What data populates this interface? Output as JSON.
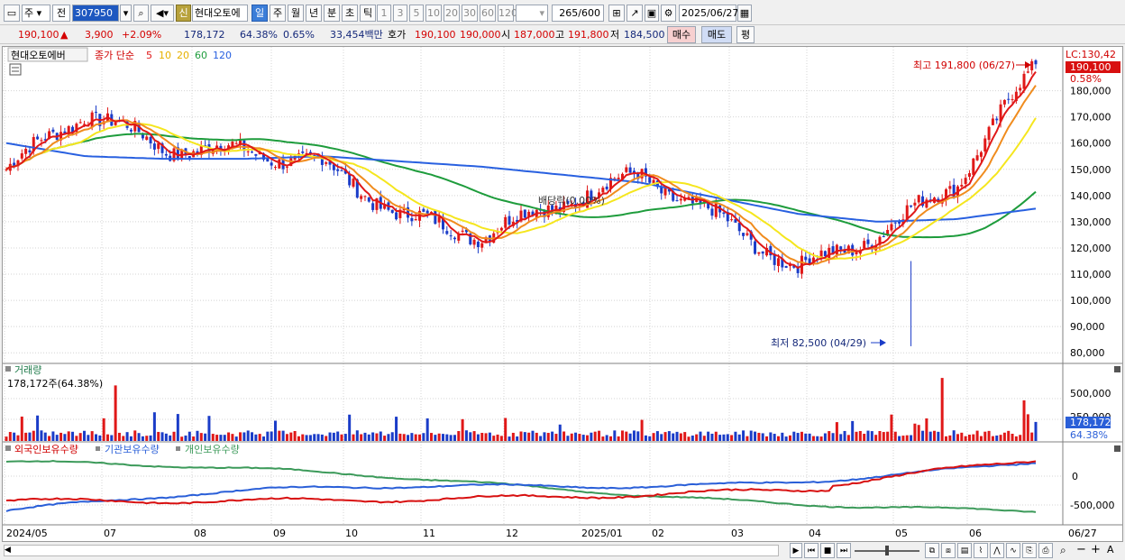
{
  "toolbar": {
    "market": "주",
    "mode": "전",
    "code": "307950",
    "new_badge": "신",
    "name": "현대오토에",
    "periods": [
      "일",
      "주",
      "월",
      "년",
      "분",
      "초",
      "틱"
    ],
    "intervals": [
      "1",
      "3",
      "5",
      "10",
      "20",
      "30",
      "60",
      "120"
    ],
    "count": "265",
    "count_max": "/600",
    "date": "2025/06/27"
  },
  "info": {
    "price": "190,100",
    "change": "3,900",
    "change_pct": "+2.09%",
    "volume": "178,172",
    "vol_ratio": "64.38%",
    "turnover": "0.65%",
    "amount": "33,454백만",
    "bid_label": "호가",
    "bid1": "190,100",
    "bid2": "190,000",
    "open_label": "시",
    "open": "187,000",
    "high_label": "고",
    "high": "191,800",
    "low_label": "저",
    "low": "184,500",
    "buy_label": "매수",
    "sell_label": "매도",
    "eval_label": "평"
  },
  "price_panel": {
    "legend_name": "현대오토에버",
    "legend_type": "종가 단순",
    "ma_labels": [
      "5",
      "10",
      "20",
      "60",
      "120"
    ],
    "lc_label": "LC:130,42",
    "last_price_tag": "190,100",
    "last_pct": "0.58%",
    "high_annotation": "최고 191,800 (06/27)",
    "low_annotation": "최저 82,500 (04/29)",
    "dividend_label": "배당락(0.00%)",
    "y_ticks": [
      "180,000",
      "170,000",
      "160,000",
      "150,000",
      "140,000",
      "130,000",
      "120,000",
      "110,000",
      "100,000",
      "90,000",
      "80,000"
    ]
  },
  "volume_panel": {
    "title": "거래량",
    "subtitle": "178,172주(64.38%)",
    "y_ticks": [
      "500,000",
      "250,000"
    ],
    "last_tag": "178,172",
    "last_pct": "64.38%"
  },
  "holding_panel": {
    "legend": [
      "외국인보유수량",
      "기관보유수량",
      "개인보유수량"
    ],
    "y_ticks": [
      "0",
      "-500,000"
    ]
  },
  "x_axis": {
    "labels": [
      "2024/05",
      "07",
      "08",
      "09",
      "10",
      "11",
      "12",
      "2025/01",
      "02",
      "03",
      "04",
      "05",
      "06",
      "06/27"
    ]
  },
  "colors": {
    "up": "#e01818",
    "down": "#1a3cc8",
    "ma5": "#e01818",
    "ma10": "#f08c1e",
    "ma20": "#f5e61e",
    "ma60": "#1e9c3c",
    "ma120": "#2860e0",
    "foreign": "#d81010",
    "institution": "#2a5fd8",
    "individual": "#3c9a5a"
  },
  "chart_data": {
    "type": "line",
    "title": "현대오토에버",
    "x": [
      "2024/05",
      "07",
      "08",
      "09",
      "10",
      "11",
      "12",
      "2025/01",
      "02",
      "03",
      "04",
      "05",
      "06",
      "06/27"
    ],
    "series": [
      {
        "name": "종가",
        "values": [
          150000,
          172000,
          158000,
          157000,
          152000,
          132000,
          125000,
          137000,
          148000,
          131000,
          112000,
          125000,
          145000,
          190100
        ]
      },
      {
        "name": "120",
        "values": [
          160000,
          155000,
          154000,
          154000,
          155000,
          153000,
          151000,
          148000,
          145000,
          139000,
          133000,
          130000,
          131000,
          135000
        ]
      }
    ],
    "ylim": [
      78000,
      195000
    ],
    "annotations": [
      "최고 191,800 (06/27)",
      "최저 82,500 (04/29)"
    ]
  }
}
